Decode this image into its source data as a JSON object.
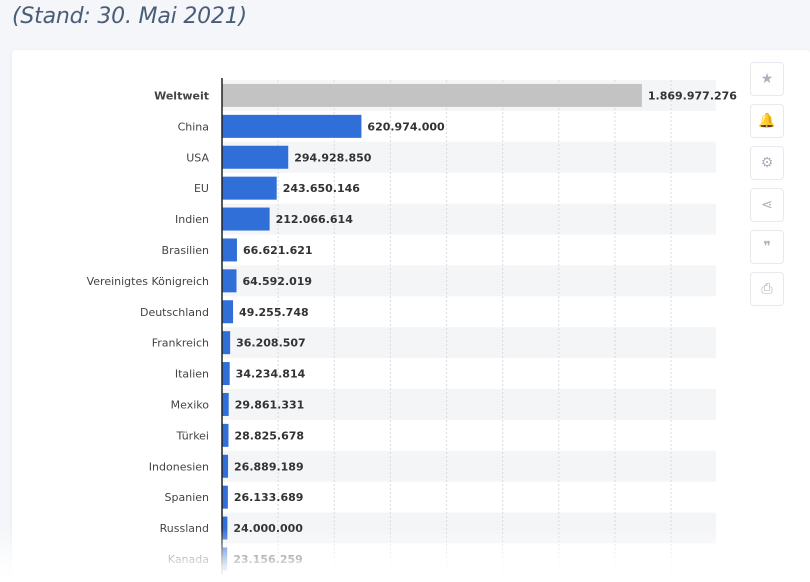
{
  "subtitle": "(Stand: 30. Mai 2021)",
  "toolbar": [
    {
      "name": "star-icon",
      "glyph": "★"
    },
    {
      "name": "bell-icon",
      "glyph": "🔔"
    },
    {
      "name": "gear-icon",
      "glyph": "⚙"
    },
    {
      "name": "share-icon",
      "glyph": "⋖"
    },
    {
      "name": "quote-icon",
      "glyph": "❞"
    },
    {
      "name": "print-icon",
      "glyph": "⎙"
    }
  ],
  "colors": {
    "bar": "#2f6fd7",
    "highlight_bar": "#c3c3c3",
    "stripe": "#f4f5f7",
    "axis": "#222222",
    "label": "#444444",
    "value": "#333333"
  },
  "chart_data": {
    "type": "bar",
    "orientation": "horizontal",
    "xlim": [
      0,
      2200000000
    ],
    "grid": true,
    "categories": [
      "Weltweit",
      "China",
      "USA",
      "EU",
      "Indien",
      "Brasilien",
      "Vereinigtes Königreich",
      "Deutschland",
      "Frankreich",
      "Italien",
      "Mexiko",
      "Türkei",
      "Indonesien",
      "Spanien",
      "Russland",
      "Kanada"
    ],
    "values": [
      1869977276,
      620974000,
      294928850,
      243650146,
      212066614,
      66621621,
      64592019,
      49255748,
      36208507,
      34234814,
      29861331,
      28825678,
      26889189,
      26133689,
      24000000,
      23156259
    ],
    "value_labels": [
      "1.869.977.276",
      "620.974.000",
      "294.928.850",
      "243.650.146",
      "212.066.614",
      "66.621.621",
      "64.592.019",
      "49.255.748",
      "36.208.507",
      "34.234.814",
      "29.861.331",
      "28.825.678",
      "26.889.189",
      "26.133.689",
      "24.000.000",
      "23.156.259"
    ],
    "highlighted": [
      "Weltweit"
    ]
  }
}
